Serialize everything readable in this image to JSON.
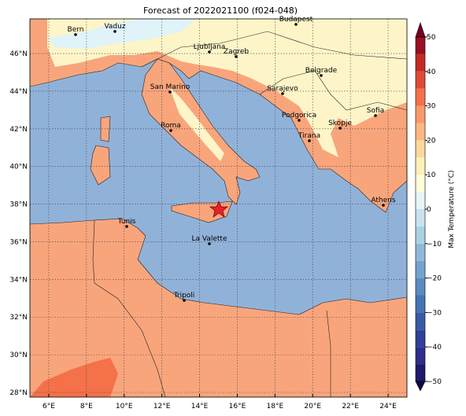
{
  "title": "Forecast of 2022021100 (f024-048)",
  "map": {
    "cities": [
      "Bern",
      "Vaduz",
      "Budapest",
      "Ljubljana",
      "Zagreb",
      "Belgrade",
      "San Marino",
      "Sarajevo",
      "Sofia",
      "Podgorica",
      "Skopje",
      "Roma",
      "Tirana",
      "Athens",
      "Tunis",
      "La Valette",
      "Tripoli"
    ]
  },
  "axes": {
    "x_ticks": [
      "6°E",
      "8°E",
      "10°E",
      "12°E",
      "14°E",
      "16°E",
      "18°E",
      "20°E",
      "22°E",
      "24°E"
    ],
    "y_ticks": [
      "28°N",
      "30°N",
      "32°N",
      "34°N",
      "36°N",
      "38°N",
      "40°N",
      "42°N",
      "44°N",
      "46°N"
    ]
  },
  "colorbar": {
    "label": "Max Temperature (°C)",
    "range": [
      -50,
      50
    ],
    "ticks": [
      {
        "value": -50,
        "label": "−50"
      },
      {
        "value": -40,
        "label": "−40"
      },
      {
        "value": -30,
        "label": "−30"
      },
      {
        "value": -20,
        "label": "−20"
      },
      {
        "value": -10,
        "label": "−10"
      },
      0,
      10,
      20,
      30,
      40,
      50
    ]
  }
}
